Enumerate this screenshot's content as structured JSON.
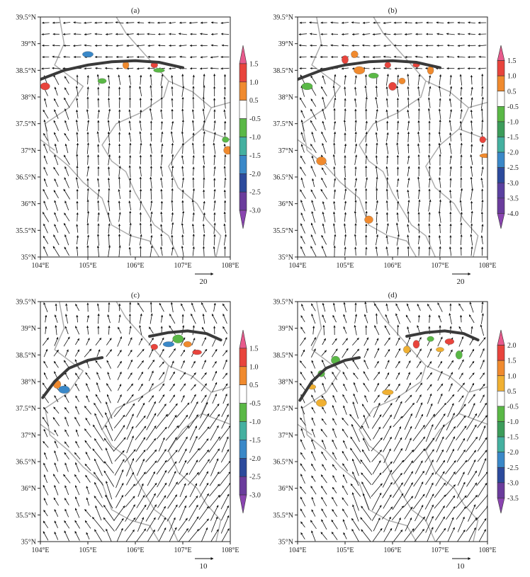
{
  "panels": [
    {
      "label": "(a)",
      "x_ticks": [
        "104°E",
        "105°E",
        "106°E",
        "107°E",
        "108°E"
      ],
      "y_ticks": [
        "35°N",
        "35.5°N",
        "36°N",
        "36.5°N",
        "37°N",
        "37.5°N",
        "38°N",
        "38.5°N",
        "39°N",
        "39.5°N"
      ],
      "colorbar_labels": [
        "1.5",
        "1.0",
        "0.5",
        "-0.5",
        "-1.0",
        "-1.5",
        "-2.0",
        "-2.5",
        "-3.0"
      ],
      "colorbar_colors": [
        "#e85a8c",
        "#e8443c",
        "#f08a2e",
        "#ffffff",
        "#5ab846",
        "#44b0a0",
        "#3a88c8",
        "#2c4a9c",
        "#6a3c9c",
        "#8a44b0"
      ],
      "ref_vector": "20",
      "wind_pattern": "southerly",
      "front": [
        [
          104.0,
          38.33
        ],
        [
          104.5,
          38.5
        ],
        [
          105.0,
          38.6
        ],
        [
          105.5,
          38.66
        ],
        [
          106.0,
          38.68
        ],
        [
          106.5,
          38.65
        ],
        [
          107.0,
          38.55
        ]
      ],
      "blobs": [
        [
          104.1,
          38.2,
          "#e8443c"
        ],
        [
          105.0,
          38.8,
          "#3a88c8"
        ],
        [
          105.3,
          38.3,
          "#5ab846"
        ],
        [
          105.8,
          38.6,
          "#f08a2e"
        ],
        [
          106.4,
          38.6,
          "#e8443c"
        ],
        [
          107.9,
          37.2,
          "#5ab846"
        ],
        [
          107.95,
          37.0,
          "#f08a2e"
        ],
        [
          106.5,
          38.5,
          "#5ab846"
        ]
      ]
    },
    {
      "label": "(b)",
      "x_ticks": [
        "104°E",
        "105°E",
        "106°E",
        "107°E",
        "108°E"
      ],
      "y_ticks": [
        "35°N",
        "35.5°N",
        "36°N",
        "36.5°N",
        "37°N",
        "37.5°N",
        "38°N",
        "38.5°N",
        "39°N",
        "39.5°N"
      ],
      "colorbar_labels": [
        "1.5",
        "1.0",
        "0.5",
        "-0.5",
        "-1.0",
        "-1.5",
        "-2.0",
        "-2.5",
        "-3.0",
        "-3.5",
        "-4.0"
      ],
      "colorbar_colors": [
        "#e85a8c",
        "#e8443c",
        "#f08a2e",
        "#ffffff",
        "#5ab846",
        "#3c9c5a",
        "#44b0a0",
        "#3a88c8",
        "#2c4a9c",
        "#5a40a0",
        "#6a3c9c",
        "#8a44b0"
      ],
      "ref_vector": "20",
      "wind_pattern": "southerly",
      "front": [
        [
          104.0,
          38.33
        ],
        [
          104.5,
          38.5
        ],
        [
          105.0,
          38.6
        ],
        [
          105.5,
          38.66
        ],
        [
          106.0,
          38.68
        ],
        [
          106.5,
          38.65
        ],
        [
          107.0,
          38.55
        ]
      ],
      "blobs": [
        [
          105.0,
          38.7,
          "#e8443c"
        ],
        [
          105.3,
          38.5,
          "#f08a2e"
        ],
        [
          105.6,
          38.4,
          "#5ab846"
        ],
        [
          105.9,
          38.6,
          "#e8443c"
        ],
        [
          106.2,
          38.3,
          "#f08a2e"
        ],
        [
          106.5,
          38.6,
          "#e8443c"
        ],
        [
          105.2,
          38.8,
          "#f08a2e"
        ],
        [
          106.0,
          38.2,
          "#e8443c"
        ],
        [
          107.9,
          37.2,
          "#e8443c"
        ],
        [
          107.95,
          36.9,
          "#f08a2e"
        ],
        [
          104.2,
          38.2,
          "#5ab846"
        ],
        [
          104.5,
          36.8,
          "#f08a2e"
        ],
        [
          105.5,
          35.7,
          "#f08a2e"
        ],
        [
          106.8,
          38.5,
          "#f08a2e"
        ]
      ]
    },
    {
      "label": "(c)",
      "x_ticks": [
        "104°E",
        "105°E",
        "106°E",
        "107°E",
        "108°E"
      ],
      "y_ticks": [
        "35°N",
        "35.5°N",
        "36°N",
        "36.5°N",
        "37°N",
        "37.5°N",
        "38°N",
        "38.5°N",
        "39°N",
        "39.5°N"
      ],
      "colorbar_labels": [
        "1.5",
        "1.0",
        "0.5",
        "-0.5",
        "-1.0",
        "-1.5",
        "-2.0",
        "-2.5",
        "-3.0"
      ],
      "colorbar_colors": [
        "#e85a8c",
        "#e8443c",
        "#f08a2e",
        "#ffffff",
        "#5ab846",
        "#44b0a0",
        "#3a88c8",
        "#2c4a9c",
        "#6a3c9c",
        "#8a44b0"
      ],
      "ref_vector": "10",
      "wind_pattern": "southwesterly",
      "front": [
        [
          104.05,
          37.7
        ],
        [
          104.3,
          38.0
        ],
        [
          104.6,
          38.25
        ],
        [
          105.0,
          38.4
        ],
        [
          105.3,
          38.45
        ]
      ],
      "front2": [
        [
          106.3,
          38.85
        ],
        [
          106.7,
          38.92
        ],
        [
          107.1,
          38.95
        ],
        [
          107.5,
          38.9
        ],
        [
          107.8,
          38.78
        ]
      ],
      "blobs": [
        [
          104.5,
          37.85,
          "#3a88c8"
        ],
        [
          104.35,
          37.95,
          "#f08a2e"
        ],
        [
          106.7,
          38.7,
          "#3a88c8"
        ],
        [
          106.9,
          38.8,
          "#5ab846"
        ],
        [
          107.1,
          38.7,
          "#f08a2e"
        ],
        [
          106.4,
          38.65,
          "#e8443c"
        ],
        [
          107.3,
          38.55,
          "#e8443c"
        ]
      ]
    },
    {
      "label": "(d)",
      "x_ticks": [
        "104°E",
        "105°E",
        "106°E",
        "107°E",
        "108°E"
      ],
      "y_ticks": [
        "35°N",
        "35.5°N",
        "36°N",
        "36.5°N",
        "37°N",
        "37.5°N",
        "38°N",
        "38.5°N",
        "39°N",
        "39.5°N"
      ],
      "colorbar_labels": [
        "2.0",
        "1.5",
        "1.0",
        "0.5",
        "-0.5",
        "-1.0",
        "-1.5",
        "-2.0",
        "-2.5",
        "-3.0",
        "-3.5"
      ],
      "colorbar_colors": [
        "#e85a8c",
        "#e8443c",
        "#f08a2e",
        "#f0b032",
        "#ffffff",
        "#5ab846",
        "#3c9c5a",
        "#44b0a0",
        "#3a88c8",
        "#2c4a9c",
        "#6a3c9c",
        "#8a44b0"
      ],
      "ref_vector": "10",
      "wind_pattern": "southwesterly",
      "front": [
        [
          104.05,
          37.65
        ],
        [
          104.3,
          38.0
        ],
        [
          104.6,
          38.25
        ],
        [
          105.0,
          38.4
        ],
        [
          105.3,
          38.45
        ]
      ],
      "front2": [
        [
          106.3,
          38.85
        ],
        [
          106.7,
          38.92
        ],
        [
          107.1,
          38.95
        ],
        [
          107.5,
          38.9
        ],
        [
          107.8,
          38.78
        ]
      ],
      "blobs": [
        [
          104.5,
          38.15,
          "#5ab846"
        ],
        [
          104.8,
          38.4,
          "#5ab846"
        ],
        [
          104.3,
          37.9,
          "#f0b032"
        ],
        [
          106.5,
          38.7,
          "#e8443c"
        ],
        [
          106.8,
          38.8,
          "#5ab846"
        ],
        [
          107.0,
          38.6,
          "#f0b032"
        ],
        [
          107.2,
          38.75,
          "#e8443c"
        ],
        [
          106.3,
          38.6,
          "#f0b032"
        ],
        [
          107.4,
          38.5,
          "#5ab846"
        ],
        [
          105.9,
          37.8,
          "#f0b032"
        ],
        [
          104.5,
          37.6,
          "#f0b032"
        ]
      ]
    }
  ]
}
